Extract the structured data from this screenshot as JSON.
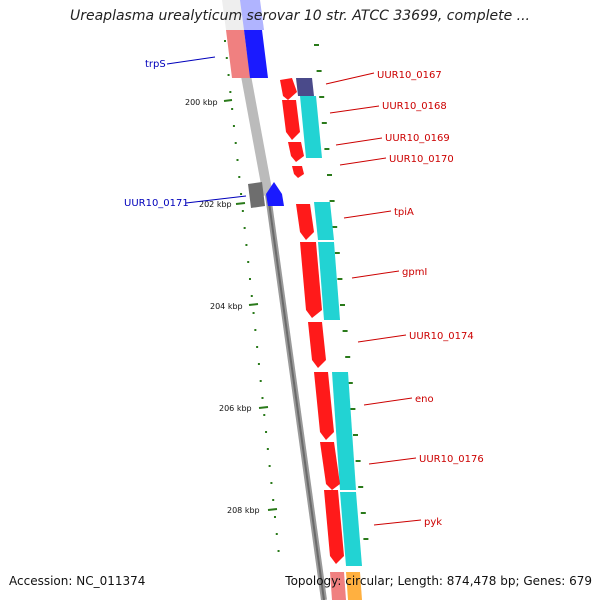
{
  "title": "Ureaplasma urealyticum serovar 10 str. ATCC 33699, complete ...",
  "accession": "Accession: NC_011374",
  "topology": "Topology: circular; Length: 874,478 bp; Genes: 679",
  "colors": {
    "gene_red": "#ff1a1a",
    "gene_cyan": "#22d3d3",
    "gene_blue": "#1a1aff",
    "gene_grey": "#6e6e6e",
    "gene_navy": "#4a4a8a",
    "backbone": "#8c8c8c",
    "tick_green": "#2a7a1a",
    "label_red": "#cc0000",
    "label_blue": "#0000bb"
  },
  "scale_ticks": [
    "200 kbp",
    "202 kbp",
    "204 kbp",
    "206 kbp",
    "208 kbp"
  ],
  "genes_right": [
    "UUR10_0167",
    "UUR10_0168",
    "UUR10_0169",
    "UUR10_0170",
    "tpiA",
    "gpmI",
    "UUR10_0174",
    "eno",
    "UUR10_0176",
    "pyk"
  ],
  "genes_left": [
    "trpS",
    "UUR10_0171"
  ]
}
